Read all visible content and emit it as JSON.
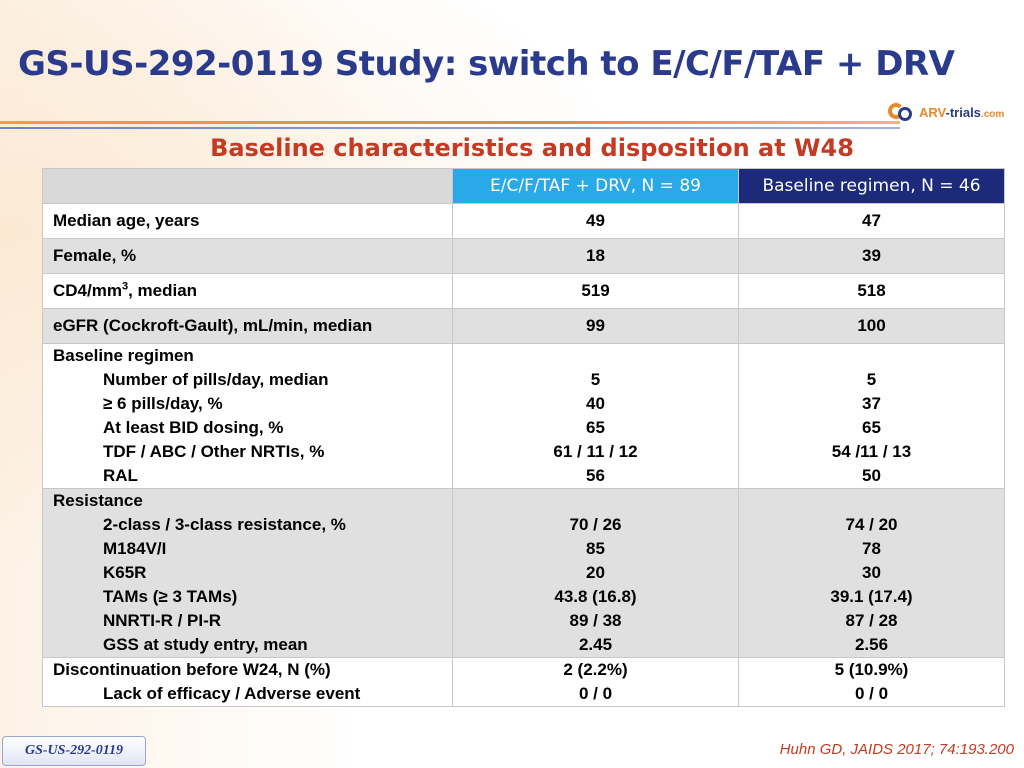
{
  "title": "GS-US-292-0119 Study: switch to E/C/F/TAF + DRV",
  "logo": {
    "arv": "ARV",
    "dash": "-",
    "trials": "trials",
    "com": ".com"
  },
  "subtitle": "Baseline characteristics and disposition at W48",
  "table": {
    "header": {
      "col_a": "E/C/F/TAF + DRV, N = 89",
      "col_b": "Baseline regimen, N = 46"
    },
    "median_age": {
      "label": "Median age, years",
      "a": "49",
      "b": "47"
    },
    "female": {
      "label": "Female, %",
      "a": "18",
      "b": "39"
    },
    "cd4": {
      "label_pre": "CD4/mm",
      "label_sup": "3",
      "label_post": ", median",
      "a": "519",
      "b": "518"
    },
    "egfr": {
      "label": "eGFR (Cockroft-Gault), mL/min, median",
      "a": "99",
      "b": "100"
    },
    "baseline_regimen": {
      "heading": "Baseline regimen",
      "rows": [
        {
          "label": "Number of pills/day, median",
          "a": "5",
          "b": "5"
        },
        {
          "label": "≥ 6 pills/day, %",
          "a": "40",
          "b": "37"
        },
        {
          "label": "At least BID dosing, %",
          "a": "65",
          "b": "65"
        },
        {
          "label": "TDF / ABC / Other NRTIs, %",
          "a": "61 / 11 / 12",
          "b": "54 /11 / 13"
        },
        {
          "label": "RAL",
          "a": "56",
          "b": "50"
        }
      ]
    },
    "resistance": {
      "heading": "Resistance",
      "rows": [
        {
          "label": "2-class / 3-class resistance, %",
          "a": "70 / 26",
          "b": "74 / 20"
        },
        {
          "label": "M184V/I",
          "a": "85",
          "b": "78"
        },
        {
          "label": "K65R",
          "a": "20",
          "b": "30"
        },
        {
          "label": "TAMs (≥ 3 TAMs)",
          "a": "43.8 (16.8)",
          "b": "39.1 (17.4)"
        },
        {
          "label": "NNRTI-R / PI-R",
          "a": "89 / 38",
          "b": "87 / 28"
        },
        {
          "label": "GSS at study entry, mean",
          "a": "2.45",
          "b": "2.56"
        }
      ]
    },
    "discontinuation": {
      "heading": "Discontinuation before W24, N (%)",
      "a": "2 (2.2%)",
      "b": "5 (10.9%)",
      "sub_label": "Lack of efficacy / Adverse event",
      "sub_a": "0 / 0",
      "sub_b": "0 / 0"
    }
  },
  "footer_tag": "GS-US-292-0119",
  "citation": "Huhn GD, JAIDS 2017; 74:193.200"
}
